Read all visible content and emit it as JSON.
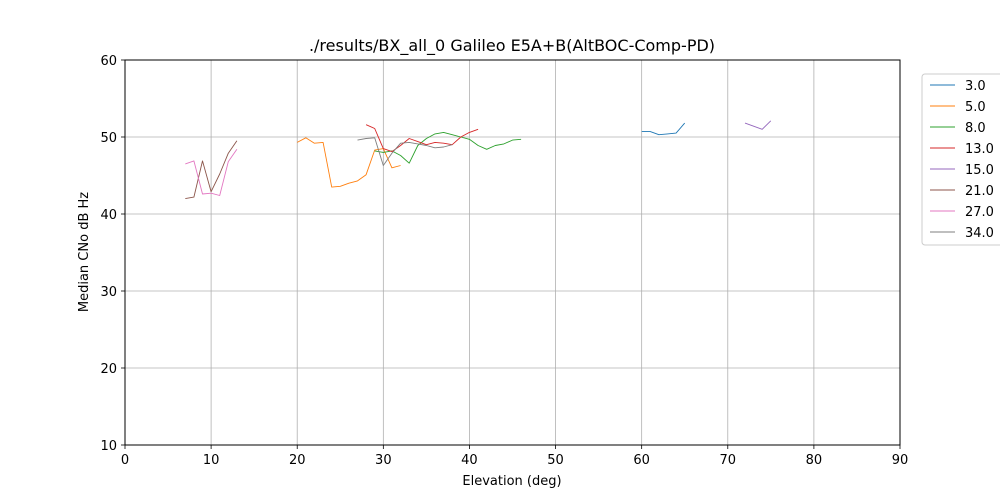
{
  "chart_data": {
    "type": "line",
    "title": "./results/BX_all_0 Galileo E5A+B(AltBOC-Comp-PD)",
    "xlabel": "Elevation (deg)",
    "ylabel": "Median CNo dB Hz",
    "xlim": [
      0,
      90
    ],
    "ylim": [
      10,
      60
    ],
    "xticks": [
      "0",
      "10",
      "20",
      "30",
      "40",
      "50",
      "60",
      "70",
      "80",
      "90"
    ],
    "yticks": [
      "10",
      "20",
      "30",
      "40",
      "50",
      "60"
    ],
    "grid": true,
    "legend_position": "right, outside plot",
    "series": [
      {
        "name": "3.0",
        "color": "#1f77b4",
        "x": [
          60,
          61,
          62,
          63,
          64,
          65
        ],
        "y": [
          50.7,
          50.7,
          50.3,
          50.4,
          50.5,
          51.8
        ]
      },
      {
        "name": "5.0",
        "color": "#ff7f0e",
        "x": [
          20,
          21,
          22,
          23,
          24,
          25,
          26,
          27,
          28,
          29,
          30,
          31,
          32
        ],
        "y": [
          49.3,
          49.9,
          49.2,
          49.3,
          43.5,
          43.6,
          44.0,
          44.3,
          45.1,
          48.3,
          48.5,
          46.0,
          46.3
        ]
      },
      {
        "name": "8.0",
        "color": "#2ca02c",
        "x": [
          29,
          30,
          31,
          32,
          33,
          34,
          35,
          36,
          37,
          38,
          39,
          40,
          41,
          42,
          43,
          44,
          45,
          46
        ],
        "y": [
          48.2,
          48.0,
          48.2,
          47.6,
          46.6,
          48.9,
          49.8,
          50.4,
          50.6,
          50.3,
          50.0,
          49.7,
          48.9,
          48.4,
          48.9,
          49.1,
          49.6,
          49.7
        ]
      },
      {
        "name": "13.0",
        "color": "#d62728",
        "x": [
          28,
          29,
          30,
          31,
          32,
          33,
          34,
          35,
          36,
          37,
          38,
          39,
          40,
          41
        ],
        "y": [
          51.6,
          51.1,
          48.5,
          48.1,
          48.9,
          49.8,
          49.4,
          49.0,
          49.3,
          49.2,
          49.0,
          50.0,
          50.6,
          51.0
        ]
      },
      {
        "name": "15.0",
        "color": "#9467bd",
        "x": [
          72,
          73,
          74,
          75
        ],
        "y": [
          51.8,
          51.4,
          51.0,
          52.1
        ]
      },
      {
        "name": "21.0",
        "color": "#8c564b",
        "x": [
          7,
          8,
          9,
          10,
          11,
          12,
          13
        ],
        "y": [
          42.0,
          42.2,
          46.9,
          42.9,
          45.2,
          47.9,
          49.5
        ]
      },
      {
        "name": "27.0",
        "color": "#e377c2",
        "x": [
          7,
          8,
          9,
          10,
          11,
          12,
          13
        ],
        "y": [
          46.5,
          46.9,
          42.6,
          42.7,
          42.4,
          46.8,
          48.4
        ]
      },
      {
        "name": "34.0",
        "color": "#7f7f7f",
        "x": [
          27,
          28,
          29,
          30,
          31,
          32,
          33,
          34,
          35,
          36,
          37,
          38
        ],
        "y": [
          49.6,
          49.8,
          49.9,
          46.3,
          47.9,
          49.2,
          49.3,
          49.1,
          48.9,
          48.6,
          48.7,
          49.0
        ]
      }
    ]
  }
}
